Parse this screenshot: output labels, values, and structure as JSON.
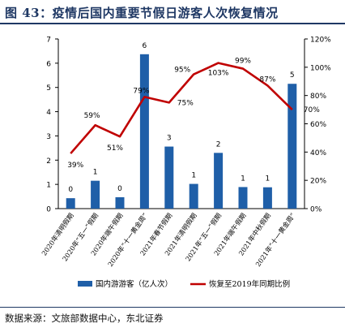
{
  "title": "图 43：疫情后国内重要节假日游客人次恢复情况",
  "source": "数据来源：文旅部数据中心，东北证券",
  "chart_data": {
    "type": "bar+line",
    "categories": [
      "2020年清明假期",
      "2020年“五一”假期",
      "2020年端午假期",
      "2020年“十一黄金周”",
      "2021年春节假期",
      "2021年清明假期",
      "2021年“五一”假期",
      "2021年端午假期",
      "2021年中秋假期",
      "2021年“十一黄金周”"
    ],
    "series": [
      {
        "name": "国内游游客（亿人次）",
        "type": "bar",
        "axis": "left",
        "color": "#1f5fa8",
        "values": [
          0.43,
          1.15,
          0.47,
          6.37,
          2.56,
          1.02,
          2.3,
          0.89,
          0.88,
          5.15
        ],
        "labels": [
          "0",
          "1",
          "0",
          "6",
          "3",
          "1",
          "2",
          "1",
          "1",
          "5"
        ]
      },
      {
        "name": "恢复至2019年同期比例",
        "type": "line",
        "axis": "right",
        "color": "#c00000",
        "values": [
          39,
          59,
          51,
          79,
          75,
          95,
          103,
          99,
          87,
          70
        ],
        "labels": [
          "39%",
          "59%",
          "51%",
          "79%",
          "75%",
          "95%",
          "103%",
          "99%",
          "87%",
          "70%"
        ]
      }
    ],
    "y_left": {
      "min": 0,
      "max": 7,
      "ticks": [
        "0",
        "1",
        "2",
        "3",
        "4",
        "5",
        "6",
        "7"
      ]
    },
    "y_right": {
      "min": 0,
      "max": 120,
      "ticks": [
        "0%",
        "20%",
        "40%",
        "60%",
        "80%",
        "100%",
        "120%"
      ]
    },
    "legend_position": "bottom"
  }
}
